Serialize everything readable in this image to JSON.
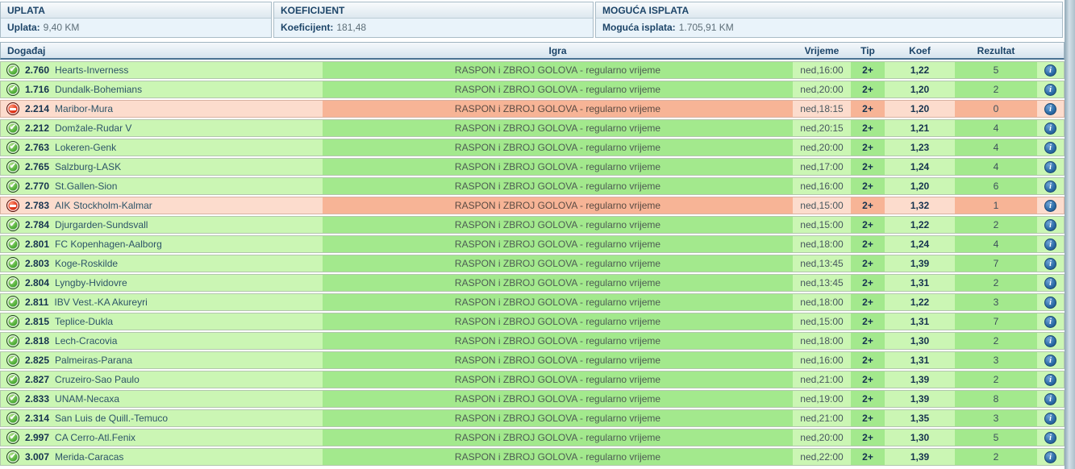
{
  "summary": {
    "uplata": {
      "header": "UPLATA",
      "label": "Uplata:",
      "value": "9,40 KM"
    },
    "koeficijent": {
      "header": "KOEFICIJENT",
      "label": "Koeficijent:",
      "value": "181,48"
    },
    "moguca": {
      "header": "MOGUĆA ISPLATA",
      "label": "Moguća isplata:",
      "value": "1.705,91 KM"
    }
  },
  "table": {
    "columns": {
      "dogadjaj": "Događaj",
      "igra": "Igra",
      "vrijeme": "Vrijeme",
      "tip": "Tip",
      "koef": "Koef",
      "rezultat": "Rezultat"
    },
    "rows": [
      {
        "status": "won",
        "code": "2.760",
        "event": "Hearts-Inverness",
        "igra": "RASPON i ZBROJ GOLOVA - regularno vrijeme",
        "vrijeme": "ned,16:00",
        "tip": "2+",
        "koef": "1,22",
        "rezultat": "5"
      },
      {
        "status": "won",
        "code": "1.716",
        "event": "Dundalk-Bohemians",
        "igra": "RASPON i ZBROJ GOLOVA - regularno vrijeme",
        "vrijeme": "ned,20:00",
        "tip": "2+",
        "koef": "1,20",
        "rezultat": "2"
      },
      {
        "status": "lost",
        "code": "2.214",
        "event": "Maribor-Mura",
        "igra": "RASPON i ZBROJ GOLOVA - regularno vrijeme",
        "vrijeme": "ned,18:15",
        "tip": "2+",
        "koef": "1,20",
        "rezultat": "0"
      },
      {
        "status": "won",
        "code": "2.212",
        "event": "Domžale-Rudar V",
        "igra": "RASPON i ZBROJ GOLOVA - regularno vrijeme",
        "vrijeme": "ned,20:15",
        "tip": "2+",
        "koef": "1,21",
        "rezultat": "4"
      },
      {
        "status": "won",
        "code": "2.763",
        "event": "Lokeren-Genk",
        "igra": "RASPON i ZBROJ GOLOVA - regularno vrijeme",
        "vrijeme": "ned,20:00",
        "tip": "2+",
        "koef": "1,23",
        "rezultat": "4"
      },
      {
        "status": "won",
        "code": "2.765",
        "event": "Salzburg-LASK",
        "igra": "RASPON i ZBROJ GOLOVA - regularno vrijeme",
        "vrijeme": "ned,17:00",
        "tip": "2+",
        "koef": "1,24",
        "rezultat": "4"
      },
      {
        "status": "won",
        "code": "2.770",
        "event": "St.Gallen-Sion",
        "igra": "RASPON i ZBROJ GOLOVA - regularno vrijeme",
        "vrijeme": "ned,16:00",
        "tip": "2+",
        "koef": "1,20",
        "rezultat": "6"
      },
      {
        "status": "lost",
        "code": "2.783",
        "event": "AIK Stockholm-Kalmar",
        "igra": "RASPON i ZBROJ GOLOVA - regularno vrijeme",
        "vrijeme": "ned,15:00",
        "tip": "2+",
        "koef": "1,32",
        "rezultat": "1"
      },
      {
        "status": "won",
        "code": "2.784",
        "event": "Djurgarden-Sundsvall",
        "igra": "RASPON i ZBROJ GOLOVA - regularno vrijeme",
        "vrijeme": "ned,15:00",
        "tip": "2+",
        "koef": "1,22",
        "rezultat": "2"
      },
      {
        "status": "won",
        "code": "2.801",
        "event": "FC Kopenhagen-Aalborg",
        "igra": "RASPON i ZBROJ GOLOVA - regularno vrijeme",
        "vrijeme": "ned,18:00",
        "tip": "2+",
        "koef": "1,24",
        "rezultat": "4"
      },
      {
        "status": "won",
        "code": "2.803",
        "event": "Koge-Roskilde",
        "igra": "RASPON i ZBROJ GOLOVA - regularno vrijeme",
        "vrijeme": "ned,13:45",
        "tip": "2+",
        "koef": "1,39",
        "rezultat": "7"
      },
      {
        "status": "won",
        "code": "2.804",
        "event": "Lyngby-Hvidovre",
        "igra": "RASPON i ZBROJ GOLOVA - regularno vrijeme",
        "vrijeme": "ned,13:45",
        "tip": "2+",
        "koef": "1,31",
        "rezultat": "2"
      },
      {
        "status": "won",
        "code": "2.811",
        "event": "IBV Vest.-KA Akureyri",
        "igra": "RASPON i ZBROJ GOLOVA - regularno vrijeme",
        "vrijeme": "ned,18:00",
        "tip": "2+",
        "koef": "1,22",
        "rezultat": "3"
      },
      {
        "status": "won",
        "code": "2.815",
        "event": "Teplice-Dukla",
        "igra": "RASPON i ZBROJ GOLOVA - regularno vrijeme",
        "vrijeme": "ned,15:00",
        "tip": "2+",
        "koef": "1,31",
        "rezultat": "7"
      },
      {
        "status": "won",
        "code": "2.818",
        "event": "Lech-Cracovia",
        "igra": "RASPON i ZBROJ GOLOVA - regularno vrijeme",
        "vrijeme": "ned,18:00",
        "tip": "2+",
        "koef": "1,30",
        "rezultat": "2"
      },
      {
        "status": "won",
        "code": "2.825",
        "event": "Palmeiras-Parana",
        "igra": "RASPON i ZBROJ GOLOVA - regularno vrijeme",
        "vrijeme": "ned,16:00",
        "tip": "2+",
        "koef": "1,31",
        "rezultat": "3"
      },
      {
        "status": "won",
        "code": "2.827",
        "event": "Cruzeiro-Sao Paulo",
        "igra": "RASPON i ZBROJ GOLOVA - regularno vrijeme",
        "vrijeme": "ned,21:00",
        "tip": "2+",
        "koef": "1,39",
        "rezultat": "2"
      },
      {
        "status": "won",
        "code": "2.833",
        "event": "UNAM-Necaxa",
        "igra": "RASPON i ZBROJ GOLOVA - regularno vrijeme",
        "vrijeme": "ned,19:00",
        "tip": "2+",
        "koef": "1,39",
        "rezultat": "8"
      },
      {
        "status": "won",
        "code": "2.314",
        "event": "San Luis de Quill.-Temuco",
        "igra": "RASPON i ZBROJ GOLOVA - regularno vrijeme",
        "vrijeme": "ned,21:00",
        "tip": "2+",
        "koef": "1,35",
        "rezultat": "3"
      },
      {
        "status": "won",
        "code": "2.997",
        "event": "CA Cerro-Atl.Fenix",
        "igra": "RASPON i ZBROJ GOLOVA - regularno vrijeme",
        "vrijeme": "ned,20:00",
        "tip": "2+",
        "koef": "1,30",
        "rezultat": "5"
      },
      {
        "status": "won",
        "code": "3.007",
        "event": "Merida-Caracas",
        "igra": "RASPON i ZBROJ GOLOVA - regularno vrijeme",
        "vrijeme": "ned,22:00",
        "tip": "2+",
        "koef": "1,39",
        "rezultat": "2"
      }
    ]
  },
  "icons": {
    "won": "check-circle-icon",
    "lost": "minus-circle-icon",
    "info": "info-icon"
  },
  "colors": {
    "won_light": "#cbf6b4",
    "won_mid": "#a3e98d",
    "lost_light": "#fcdccd",
    "lost_mid": "#f7b496",
    "header_text": "#1c4468",
    "info_blue": "#2c6ca7"
  }
}
